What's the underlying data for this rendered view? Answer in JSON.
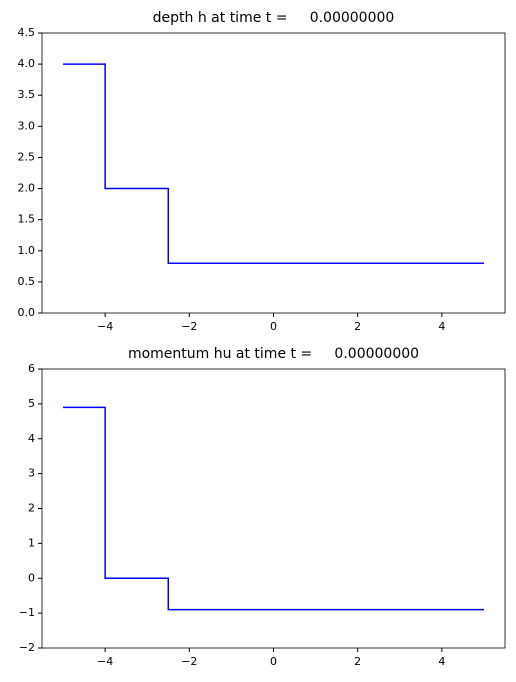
{
  "chart_data": [
    {
      "type": "line",
      "title": "depth h at time t =     0.00000000",
      "x": [
        -5,
        -4,
        -4,
        -2.5,
        -2.5,
        5
      ],
      "series": [
        {
          "color": "#0000ff",
          "values": [
            4.0,
            4.0,
            2.0,
            2.0,
            0.8,
            0.8
          ]
        }
      ],
      "xlim": [
        -5.5,
        5.5
      ],
      "xticks": [
        {
          "value": -4,
          "label": "−4"
        },
        {
          "value": -2,
          "label": "−2"
        },
        0,
        2,
        4
      ],
      "ylim": [
        0,
        4.5
      ],
      "yticks": [
        {
          "value": 0,
          "label": "0.0"
        },
        0.5,
        {
          "value": 1,
          "label": "1.0"
        },
        1.5,
        {
          "value": 2,
          "label": "2.0"
        },
        2.5,
        {
          "value": 3,
          "label": "3.0"
        },
        3.5,
        {
          "value": 4,
          "label": "4.0"
        },
        4.5
      ],
      "grid": false
    },
    {
      "type": "line",
      "title": "momentum hu at time t =     0.00000000",
      "x": [
        -5,
        -4,
        -4,
        -2.5,
        -2.5,
        5
      ],
      "series": [
        {
          "color": "#0000ff",
          "values": [
            4.9,
            4.9,
            0,
            0,
            -0.9,
            -0.9
          ]
        }
      ],
      "xlim": [
        -5.5,
        5.5
      ],
      "xticks": [
        {
          "value": -4,
          "label": "−4"
        },
        {
          "value": -2,
          "label": "−2"
        },
        0,
        2,
        4
      ],
      "ylim": [
        -2,
        6
      ],
      "yticks": [
        {
          "value": -2,
          "label": "−2"
        },
        {
          "value": -1,
          "label": "−1"
        },
        0,
        1,
        2,
        3,
        4,
        5,
        6
      ],
      "grid": false
    }
  ]
}
